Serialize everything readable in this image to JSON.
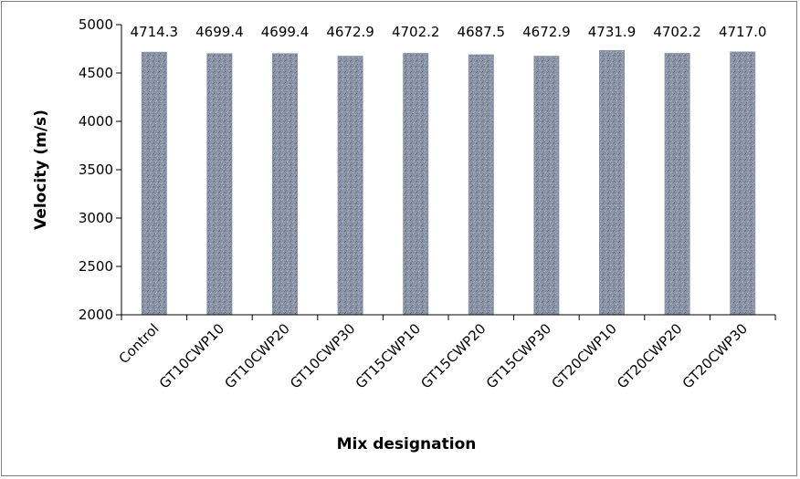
{
  "chart_data": {
    "type": "bar",
    "title": "",
    "xlabel": "Mix designation",
    "ylabel": "Velocity (m/s)",
    "ylim": [
      2000,
      5000
    ],
    "yticks": [
      "2000",
      "2500",
      "3000",
      "3500",
      "4000",
      "4500",
      "5000"
    ],
    "categories": [
      "Control",
      "GT10CWP10",
      "GT10CWP20",
      "GT10CWP30",
      "GT15CWP10",
      "GT15CWP20",
      "GT15CWP30",
      "GT20CWP10",
      "GT20CWP20",
      "GT20CWP30"
    ],
    "values": [
      4714.3,
      4699.4,
      4699.4,
      4672.9,
      4702.2,
      4687.5,
      4672.9,
      4731.9,
      4702.2,
      4717.0
    ],
    "value_labels": [
      "4714.3",
      "4699.4",
      "4699.4",
      "4672.9",
      "4702.2",
      "4687.5",
      "4672.9",
      "4731.9",
      "4702.2",
      "4717.0"
    ],
    "grid": false,
    "legend": "none",
    "bar_fill": "granite-texture",
    "colors": {
      "bar_base": "#8c96a8",
      "bar_speckle_dark": "#2e3440",
      "bar_speckle_light": "#e6e9ef",
      "axis": "#000000",
      "frame": "#7f7f7f"
    }
  }
}
